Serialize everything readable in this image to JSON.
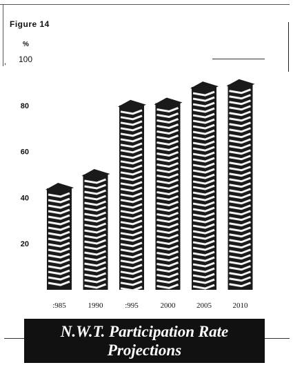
{
  "figure_label": "Figure 14",
  "stray_mark": ",",
  "colors": {
    "bar": "#1a1a1a",
    "bar_highlight": "#f4f4f4",
    "caption_bg": "#111111"
  },
  "caption": {
    "line1": "N.W.T. Participation Rate",
    "line2": "Projections"
  },
  "chart_data": {
    "type": "bar",
    "title": "N.W.T. Participation Rate Projections",
    "ylabel": "%",
    "xlabel": "",
    "categories": [
      "1985",
      "1990",
      "1995",
      "2000",
      "2005",
      "2010"
    ],
    "tick_labels": [
      ":985",
      "1990",
      ":995",
      "2000",
      "2005",
      "2010"
    ],
    "values": [
      44,
      50,
      80,
      81,
      88,
      89
    ],
    "ylim": [
      0,
      100
    ],
    "yticks": [
      {
        "value": 20,
        "label": "20"
      },
      {
        "value": 40,
        "label": "40"
      },
      {
        "value": 60,
        "label": "60"
      },
      {
        "value": 80,
        "label": "80"
      },
      {
        "value": 100,
        "label": "100"
      }
    ],
    "grid": false,
    "legend": "none"
  }
}
